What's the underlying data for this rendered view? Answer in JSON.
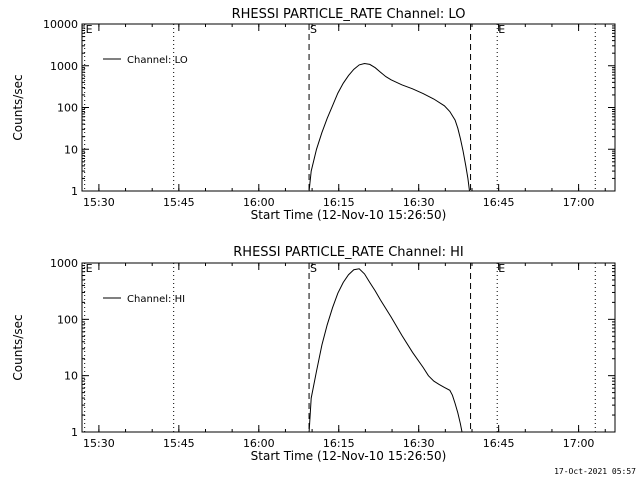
{
  "footer": {
    "timestamp": "17-Oct-2021 05:57"
  },
  "chart_data": [
    {
      "type": "line",
      "title": "RHESSI PARTICLE_RATE Channel: LO",
      "xlabel": "Start Time (12-Nov-10 15:26:50)",
      "ylabel": "Counts/sec",
      "x_ticks": [
        "15:30",
        "15:45",
        "16:00",
        "16:15",
        "16:30",
        "16:45",
        "17:00"
      ],
      "x_tick_minutes": [
        3.17,
        18.17,
        33.17,
        48.17,
        63.17,
        78.17,
        93.17
      ],
      "xlim_minutes": [
        0,
        100
      ],
      "yscale": "log",
      "ylim": [
        1,
        10000
      ],
      "y_ticks": [
        "1",
        "10",
        "100",
        "1000",
        "10000"
      ],
      "y_tick_values": [
        1,
        10,
        100,
        1000,
        10000
      ],
      "legend": {
        "label": "Channel: LO",
        "position": "top-left"
      },
      "markers": [
        {
          "label": "E",
          "minute": 0.5,
          "style": "dotted"
        },
        {
          "label": "",
          "minute": 17.2,
          "style": "dotted"
        },
        {
          "label": "S",
          "minute": 42.6,
          "style": "dashed"
        },
        {
          "label": "",
          "minute": 72.9,
          "style": "dashed"
        },
        {
          "label": "E",
          "minute": 77.9,
          "style": "dotted"
        },
        {
          "label": "",
          "minute": 96.3,
          "style": "dotted"
        }
      ],
      "series": [
        {
          "name": "Channel: LO",
          "x": [
            42.6,
            43,
            44,
            45,
            46,
            47,
            48,
            49,
            50,
            51,
            52,
            53,
            54,
            55,
            56,
            57,
            58,
            60,
            62,
            64,
            66,
            68,
            69,
            70,
            70.5,
            71,
            71.5,
            72,
            72.4,
            72.7
          ],
          "y": [
            1,
            3,
            10,
            25,
            55,
            110,
            220,
            380,
            580,
            820,
            1050,
            1130,
            1080,
            900,
            700,
            550,
            460,
            350,
            280,
            215,
            160,
            110,
            80,
            50,
            32,
            18,
            9,
            4,
            2,
            1
          ]
        }
      ]
    },
    {
      "type": "line",
      "title": "RHESSI PARTICLE_RATE Channel: HI",
      "xlabel": "Start Time (12-Nov-10 15:26:50)",
      "ylabel": "Counts/sec",
      "x_ticks": [
        "15:30",
        "15:45",
        "16:00",
        "16:15",
        "16:30",
        "16:45",
        "17:00"
      ],
      "x_tick_minutes": [
        3.17,
        18.17,
        33.17,
        48.17,
        63.17,
        78.17,
        93.17
      ],
      "xlim_minutes": [
        0,
        100
      ],
      "yscale": "log",
      "ylim": [
        1,
        1000
      ],
      "y_ticks": [
        "1",
        "10",
        "100",
        "1000"
      ],
      "y_tick_values": [
        1,
        10,
        100,
        1000
      ],
      "legend": {
        "label": "Channel: HI",
        "position": "top-left"
      },
      "markers": [
        {
          "label": "E",
          "minute": 0.5,
          "style": "dotted"
        },
        {
          "label": "",
          "minute": 17.2,
          "style": "dotted"
        },
        {
          "label": "S",
          "minute": 42.6,
          "style": "dashed"
        },
        {
          "label": "",
          "minute": 72.9,
          "style": "dashed"
        },
        {
          "label": "E",
          "minute": 77.9,
          "style": "dotted"
        },
        {
          "label": "",
          "minute": 96.3,
          "style": "dotted"
        }
      ],
      "series": [
        {
          "name": "Channel: HI",
          "x": [
            42.6,
            43,
            44,
            45,
            46,
            47,
            48,
            49,
            50,
            51,
            52,
            53,
            54,
            55,
            56,
            58,
            60,
            62,
            64,
            65,
            66,
            67,
            68,
            69,
            69.5,
            70,
            70.5,
            71,
            71.3
          ],
          "y": [
            1,
            4,
            12,
            35,
            80,
            160,
            290,
            450,
            620,
            760,
            790,
            640,
            450,
            320,
            220,
            110,
            52,
            26,
            14,
            10,
            8,
            7,
            6.2,
            5.5,
            4.5,
            3.2,
            2.2,
            1.4,
            1
          ]
        }
      ]
    }
  ]
}
